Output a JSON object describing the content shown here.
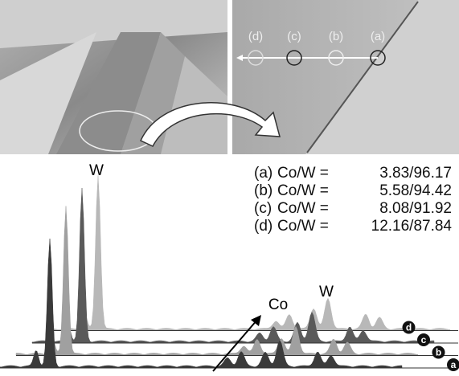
{
  "sem_images": {
    "spot_labels": [
      "(d)",
      "(c)",
      "(b)",
      "(a)"
    ]
  },
  "spectra": {
    "peak_label_top": "W",
    "peak_label_co": "Co",
    "peak_label_w": "W",
    "trace_labels": [
      "d",
      "c",
      "b",
      "a"
    ]
  },
  "measurements": [
    {
      "label": "(a)",
      "ratio": "Co/W =",
      "value": "3.83/96.17"
    },
    {
      "label": "(b)",
      "ratio": "Co/W =",
      "value": "5.58/94.42"
    },
    {
      "label": "(c)",
      "ratio": "Co/W =",
      "value": "8.08/91.92"
    },
    {
      "label": "(d)",
      "ratio": "Co/W =",
      "value": "12.16/87.84"
    }
  ]
}
